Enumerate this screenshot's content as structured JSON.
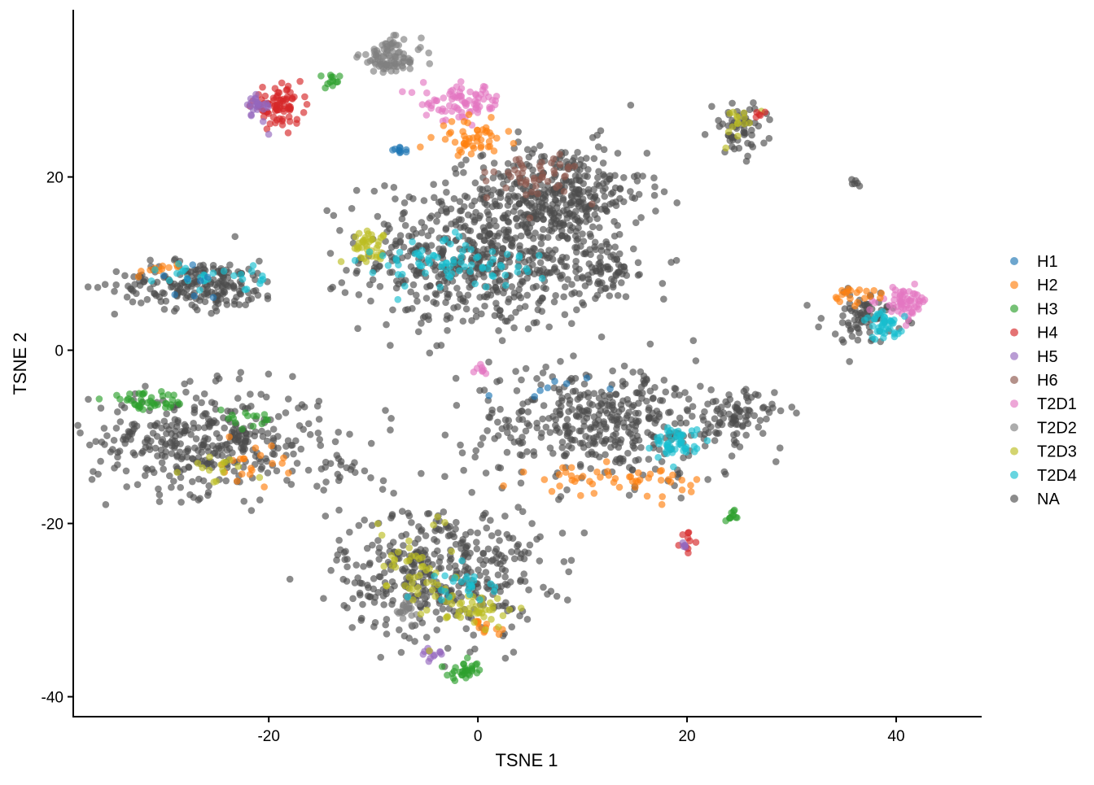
{
  "chart_data": {
    "type": "scatter",
    "title": "",
    "xlabel": "TSNE 1",
    "ylabel": "TSNE 2",
    "xlim": [
      -38.7,
      48.1
    ],
    "ylim": [
      -42.3,
      39.3
    ],
    "xticks": [
      -20,
      0,
      20,
      40
    ],
    "yticks": [
      -40,
      -20,
      0,
      20
    ],
    "grid": false,
    "legend_placement": "right",
    "point_alpha": 0.65,
    "legend": [
      {
        "name": "H1",
        "color": "#1F77B4"
      },
      {
        "name": "H2",
        "color": "#FF7F0E"
      },
      {
        "name": "H3",
        "color": "#2CA02C"
      },
      {
        "name": "H4",
        "color": "#D62728"
      },
      {
        "name": "H5",
        "color": "#9467BD"
      },
      {
        "name": "H6",
        "color": "#8C564B"
      },
      {
        "name": "T2D1",
        "color": "#E377C2"
      },
      {
        "name": "T2D2",
        "color": "#7F7F7F"
      },
      {
        "name": "T2D3",
        "color": "#BCBD22"
      },
      {
        "name": "T2D4",
        "color": "#17BECF"
      },
      {
        "name": "NA",
        "color": "#4D4D4D"
      }
    ],
    "clusters": [
      {
        "group": "NA",
        "x": 1,
        "y": 11,
        "sx": 6,
        "sy": 4.5,
        "n": 650
      },
      {
        "group": "NA",
        "x": 8,
        "y": 18,
        "sx": 4,
        "sy": 3,
        "n": 300
      },
      {
        "group": "NA",
        "x": 12,
        "y": 9,
        "sx": 1.5,
        "sy": 1.5,
        "n": 60
      },
      {
        "group": "NA",
        "x": -26.6,
        "y": 7.5,
        "sx": 4,
        "sy": 1.4,
        "n": 200
      },
      {
        "group": "NA",
        "x": -26,
        "y": -10.5,
        "sx": 5.5,
        "sy": 3,
        "n": 380
      },
      {
        "group": "NA",
        "x": -13,
        "y": -13.5,
        "sx": 1.5,
        "sy": 1,
        "n": 20
      },
      {
        "group": "NA",
        "x": -3.6,
        "y": -25.5,
        "sx": 4.8,
        "sy": 3.8,
        "n": 420
      },
      {
        "group": "NA",
        "x": 12,
        "y": -8.5,
        "sx": 6.5,
        "sy": 3.3,
        "n": 420
      },
      {
        "group": "NA",
        "x": 24.4,
        "y": -7.5,
        "sx": 2,
        "sy": 1.4,
        "n": 80
      },
      {
        "group": "NA",
        "x": 25,
        "y": 25.5,
        "sx": 1.3,
        "sy": 1.5,
        "n": 60
      },
      {
        "group": "NA",
        "x": 37,
        "y": 4,
        "sx": 2,
        "sy": 1.5,
        "n": 80
      },
      {
        "group": "NA",
        "x": 36,
        "y": 19.2,
        "sx": 0.3,
        "sy": 0.4,
        "n": 6
      },
      {
        "group": "T2D2",
        "x": -8.3,
        "y": 33.8,
        "sx": 1.5,
        "sy": 1,
        "n": 90
      },
      {
        "group": "T2D2",
        "x": -6.8,
        "y": -30,
        "sx": 0.8,
        "sy": 0.8,
        "n": 20
      },
      {
        "group": "H4",
        "x": -19.2,
        "y": 28.2,
        "sx": 1.2,
        "sy": 1,
        "n": 80
      },
      {
        "group": "H4",
        "x": 20.2,
        "y": -22,
        "sx": 0.4,
        "sy": 0.5,
        "n": 10
      },
      {
        "group": "H5",
        "x": -21,
        "y": 28,
        "sx": 0.6,
        "sy": 0.9,
        "n": 25
      },
      {
        "group": "H5",
        "x": 19.5,
        "y": -22.5,
        "sx": 0.3,
        "sy": 0.3,
        "n": 5
      },
      {
        "group": "H5",
        "x": -4.4,
        "y": -35,
        "sx": 0.6,
        "sy": 0.5,
        "n": 12
      },
      {
        "group": "H3",
        "x": -13.8,
        "y": 31,
        "sx": 0.4,
        "sy": 0.4,
        "n": 12
      },
      {
        "group": "H3",
        "x": -31.7,
        "y": -6,
        "sx": 2,
        "sy": 0.5,
        "n": 40
      },
      {
        "group": "H3",
        "x": -22,
        "y": -8,
        "sx": 1.5,
        "sy": 0.6,
        "n": 15
      },
      {
        "group": "H3",
        "x": -1.3,
        "y": -37,
        "sx": 0.8,
        "sy": 0.5,
        "n": 30
      },
      {
        "group": "H3",
        "x": 24.4,
        "y": -19.3,
        "sx": 0.3,
        "sy": 0.4,
        "n": 10
      },
      {
        "group": "T2D1",
        "x": -1.3,
        "y": 28.6,
        "sx": 2,
        "sy": 1,
        "n": 80
      },
      {
        "group": "T2D1",
        "x": 40.7,
        "y": 5.6,
        "sx": 1.2,
        "sy": 0.8,
        "n": 60
      },
      {
        "group": "T2D1",
        "x": 0.2,
        "y": -2.3,
        "sx": 0.4,
        "sy": 0.5,
        "n": 8
      },
      {
        "group": "H2",
        "x": -0.5,
        "y": 24.4,
        "sx": 1.5,
        "sy": 1,
        "n": 50
      },
      {
        "group": "H2",
        "x": -30,
        "y": 9.4,
        "sx": 1,
        "sy": 0.4,
        "n": 10
      },
      {
        "group": "H2",
        "x": -22,
        "y": -13,
        "sx": 2,
        "sy": 1,
        "n": 20
      },
      {
        "group": "H2",
        "x": 0.5,
        "y": -32,
        "sx": 0.8,
        "sy": 0.6,
        "n": 12
      },
      {
        "group": "H2",
        "x": 13.5,
        "y": -15,
        "sx": 4,
        "sy": 0.8,
        "n": 50
      },
      {
        "group": "H2",
        "x": 36,
        "y": 6.5,
        "sx": 1.5,
        "sy": 0.6,
        "n": 20
      },
      {
        "group": "H6",
        "x": 5.7,
        "y": 20,
        "sx": 2,
        "sy": 1.5,
        "n": 50
      },
      {
        "group": "T2D3",
        "x": -10.7,
        "y": 12.2,
        "sx": 1,
        "sy": 0.8,
        "n": 40
      },
      {
        "group": "T2D3",
        "x": -25,
        "y": -13.5,
        "sx": 2,
        "sy": 1,
        "n": 15
      },
      {
        "group": "T2D3",
        "x": -6,
        "y": -25,
        "sx": 2,
        "sy": 3,
        "n": 50
      },
      {
        "group": "T2D3",
        "x": 0.2,
        "y": -30,
        "sx": 1.5,
        "sy": 1,
        "n": 40
      },
      {
        "group": "T2D3",
        "x": 25,
        "y": 26,
        "sx": 1,
        "sy": 1,
        "n": 15
      },
      {
        "group": "T2D4",
        "x": -2,
        "y": 10,
        "sx": 4,
        "sy": 1.5,
        "n": 80
      },
      {
        "group": "T2D4",
        "x": -25.4,
        "y": 8.4,
        "sx": 2.5,
        "sy": 0.8,
        "n": 30
      },
      {
        "group": "T2D4",
        "x": -1.3,
        "y": -27,
        "sx": 1.5,
        "sy": 1,
        "n": 25
      },
      {
        "group": "T2D4",
        "x": 18.9,
        "y": -10.8,
        "sx": 1,
        "sy": 1,
        "n": 50
      },
      {
        "group": "T2D4",
        "x": 39,
        "y": 2.8,
        "sx": 1,
        "sy": 0.8,
        "n": 40
      },
      {
        "group": "H1",
        "x": -7.5,
        "y": 23,
        "sx": 0.6,
        "sy": 0.2,
        "n": 10
      },
      {
        "group": "H1",
        "x": -27,
        "y": 8,
        "sx": 2,
        "sy": 1,
        "n": 8
      },
      {
        "group": "H1",
        "x": 9,
        "y": -4,
        "sx": 3,
        "sy": 1,
        "n": 8
      },
      {
        "group": "H4",
        "x": 27,
        "y": 27.5,
        "sx": 0.3,
        "sy": 0.3,
        "n": 5
      }
    ]
  }
}
